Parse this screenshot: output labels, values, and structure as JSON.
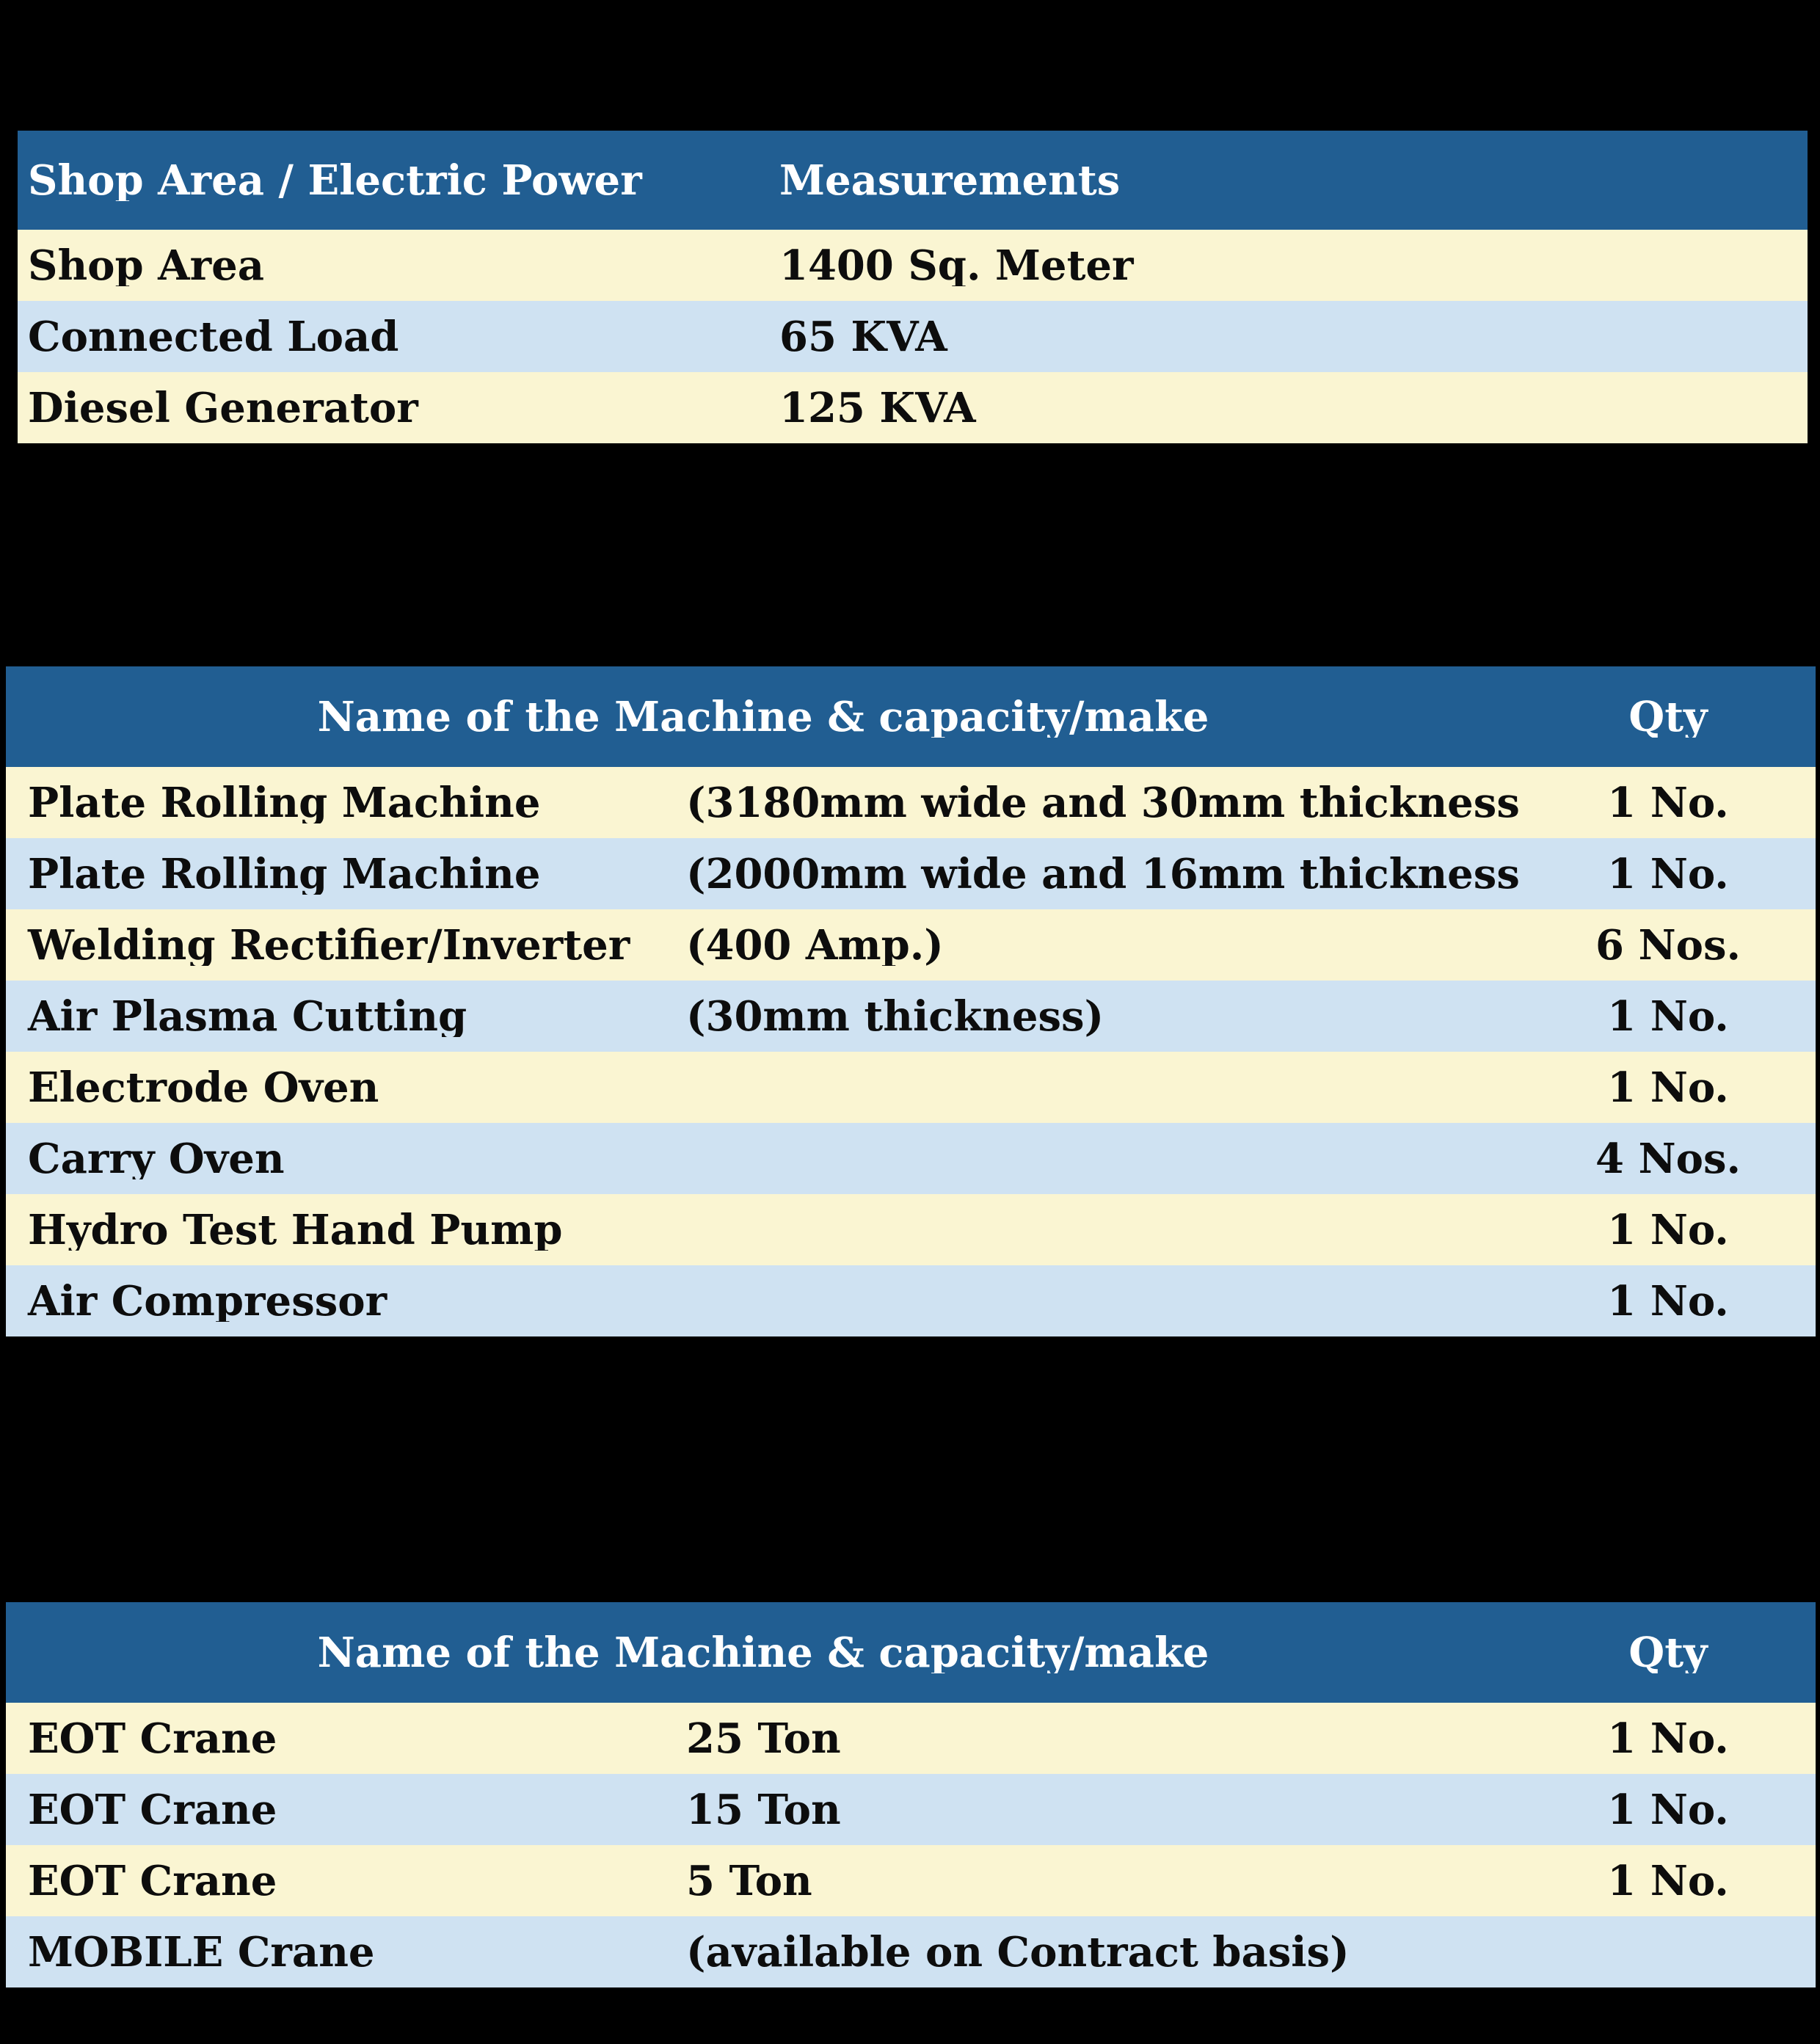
{
  "colors": {
    "page_bg": "#000000",
    "header_bg": "#215E92",
    "header_text": "#FFFFFF",
    "row_yellow": "#FAF5D2",
    "row_blue": "#CFE2F2",
    "row_text": "#0D0D0D"
  },
  "tables": [
    {
      "title": "Shop Area / Electric Power",
      "columns": [
        "Shop Area / Electric Power",
        "Measurements"
      ],
      "rows": [
        {
          "label": "Shop Area",
          "value": "1400 Sq. Meter"
        },
        {
          "label": "Connected Load",
          "value": "65 KVA"
        },
        {
          "label": "Diesel Generator",
          "value": "125 KVA"
        }
      ]
    },
    {
      "header": {
        "title": "Name of the Machine & capacity/make",
        "qty": "Qty"
      },
      "rows": [
        {
          "name": "Plate Rolling Machine",
          "capacity": "(3180mm wide and 30mm thickness)",
          "qty": "1 No."
        },
        {
          "name": "Plate Rolling Machine",
          "capacity": "(2000mm wide and 16mm thickness)",
          "qty": "1 No."
        },
        {
          "name": "Welding Rectifier/Inverter",
          "capacity": "(400 Amp.)",
          "qty": "6 Nos."
        },
        {
          "name": "Air Plasma Cutting",
          "capacity": "(30mm thickness)",
          "qty": "1 No."
        },
        {
          "name": "Electrode Oven",
          "capacity": "",
          "qty": "1 No."
        },
        {
          "name": "Carry Oven",
          "capacity": "",
          "qty": "4 Nos."
        },
        {
          "name": "Hydro Test Hand Pump",
          "capacity": "",
          "qty": "1 No."
        },
        {
          "name": "Air Compressor",
          "capacity": "",
          "qty": "1 No."
        }
      ]
    },
    {
      "header": {
        "title": "Name of the Machine & capacity/make",
        "qty": "Qty"
      },
      "rows": [
        {
          "name": "EOT Crane",
          "capacity": "25 Ton",
          "qty": "1 No."
        },
        {
          "name": "EOT Crane",
          "capacity": "15 Ton",
          "qty": "1 No."
        },
        {
          "name": "EOT Crane",
          "capacity": "5 Ton",
          "qty": "1 No."
        },
        {
          "name": "MOBILE Crane",
          "capacity": "(available on Contract basis)",
          "qty": ""
        }
      ]
    }
  ]
}
